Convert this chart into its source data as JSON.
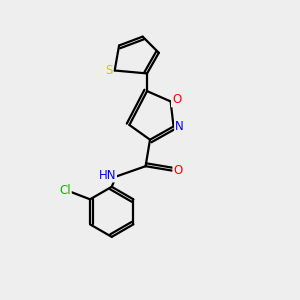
{
  "background_color": "#eeeeee",
  "bond_color": "#000000",
  "line_width": 1.6,
  "atom_colors": {
    "S": "#cccc00",
    "O": "#ff0000",
    "N": "#0000ff",
    "Cl": "#00bb00",
    "C": "#000000",
    "H": "#555555"
  },
  "font_size": 8.5,
  "fig_size": [
    3.0,
    3.0
  ],
  "dpi": 100
}
